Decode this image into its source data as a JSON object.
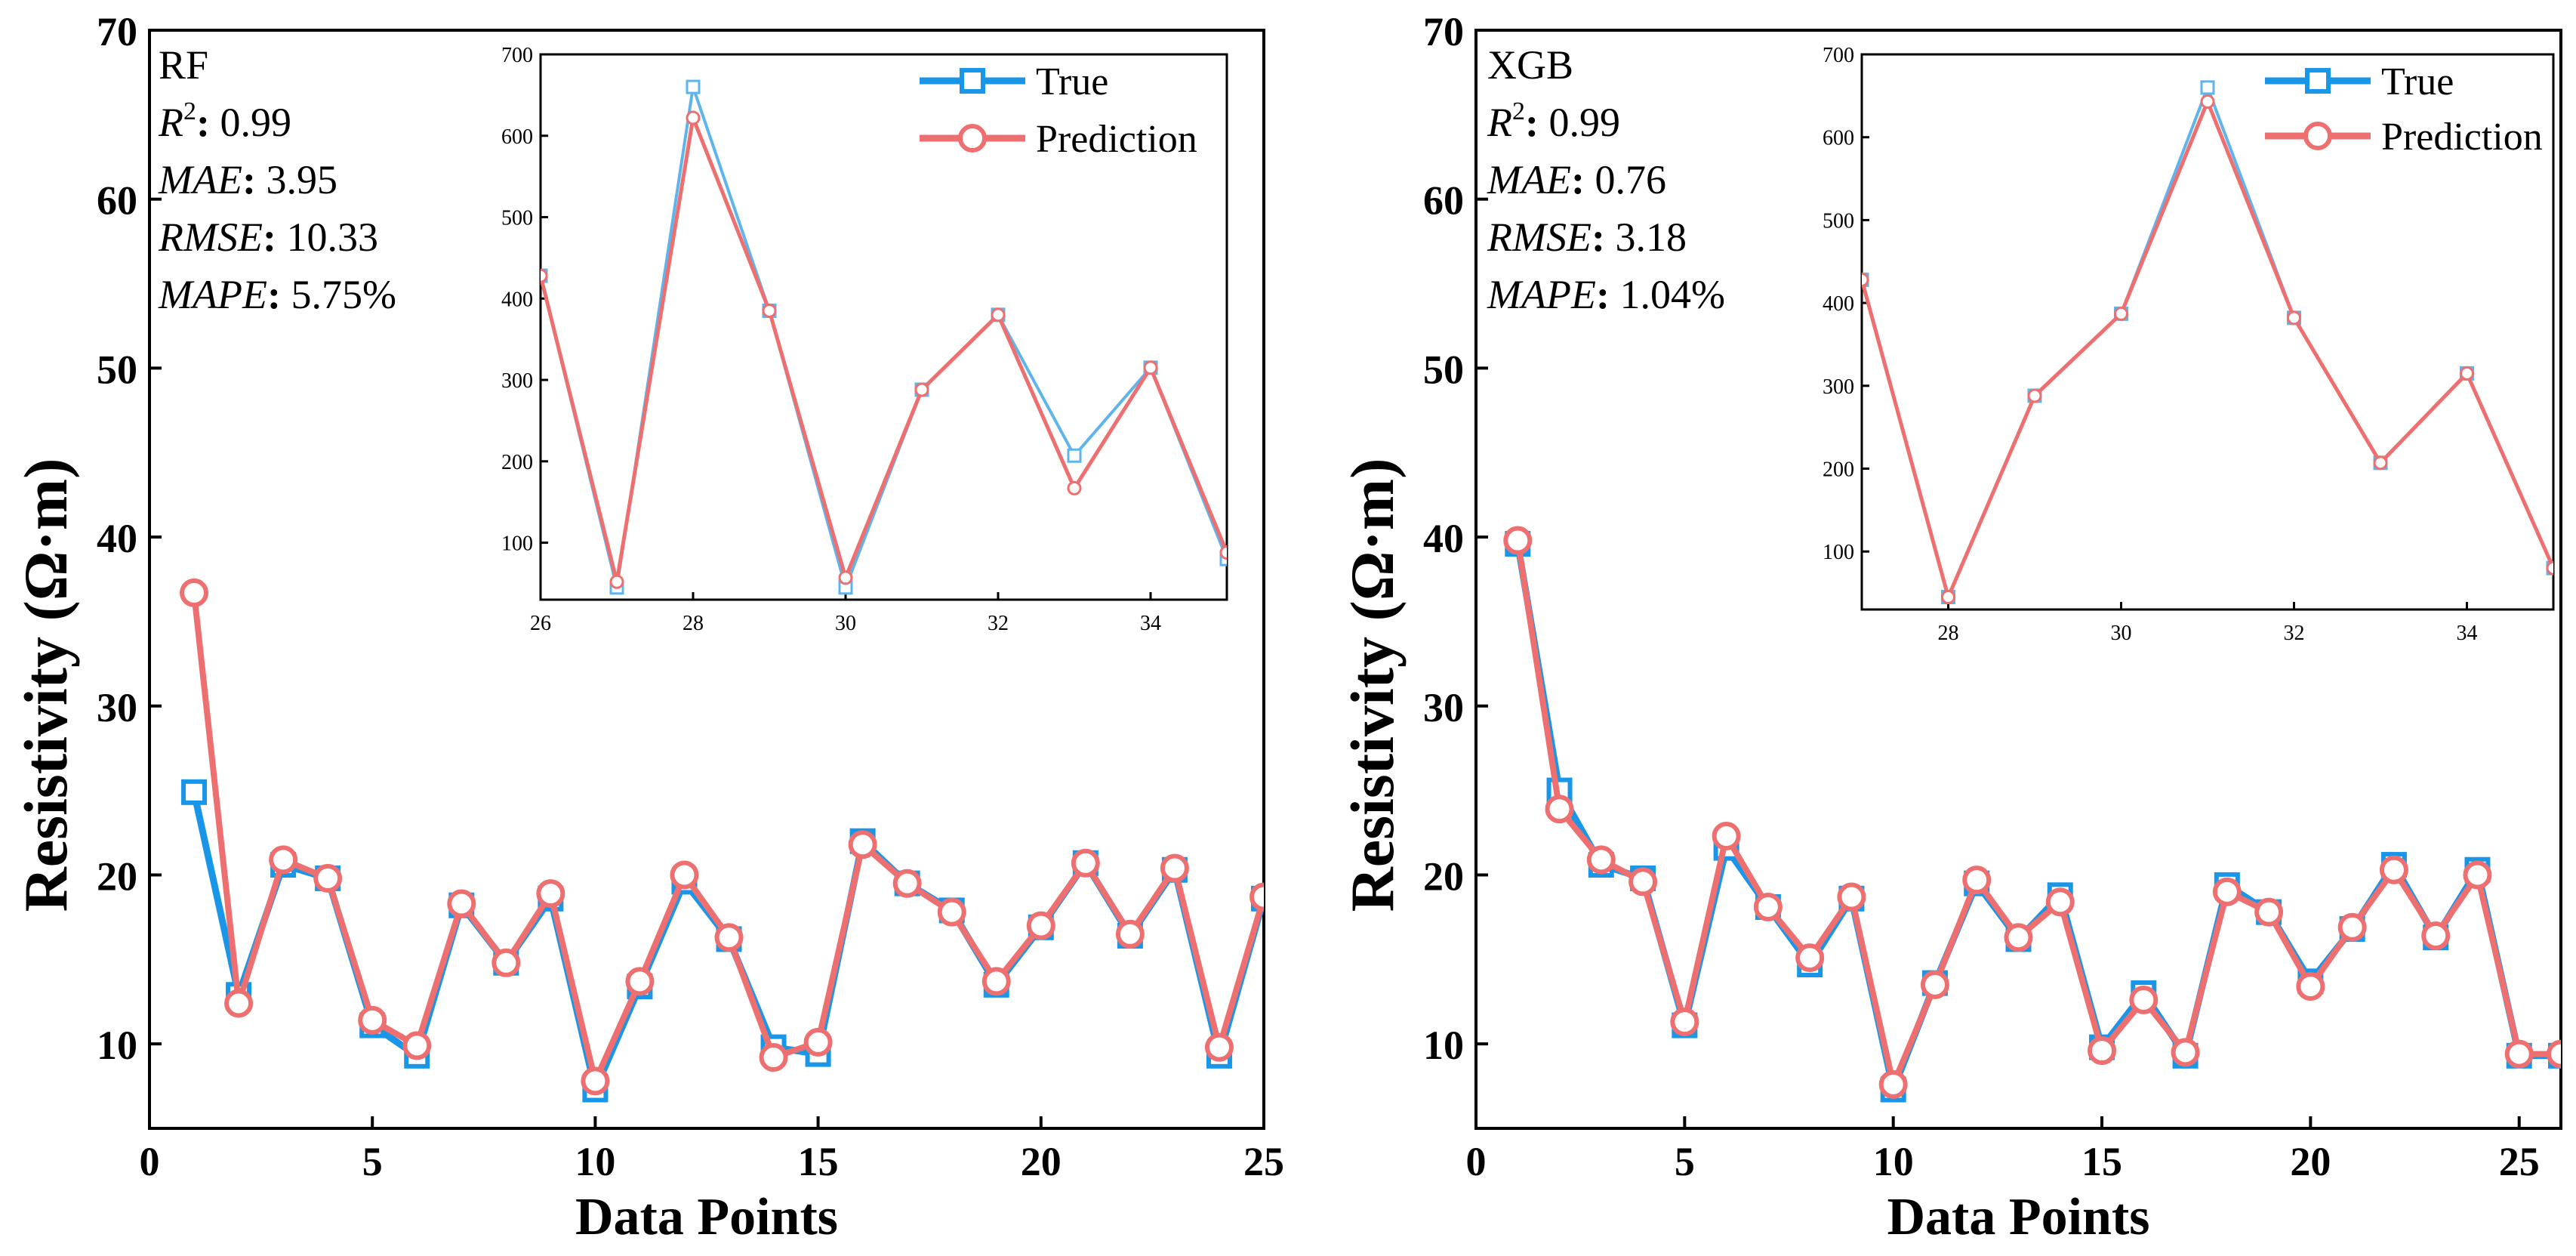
{
  "colors": {
    "true_line": "#1a96e8",
    "true_inset": "#5fb4ec",
    "prediction_line": "#ee6f6f",
    "marker_fill": "#ffffff",
    "axis": "#000000"
  },
  "chart_data": [
    {
      "type": "line",
      "model": "RF",
      "metrics": [
        {
          "name": "R",
          "sup": "2",
          "value": "0.99"
        },
        {
          "name": "MAE",
          "value": "3.95"
        },
        {
          "name": "RMSE",
          "value": "10.33"
        },
        {
          "name": "MAPE",
          "value": "5.75%"
        }
      ],
      "xlabel": "Data Points",
      "ylabel": "Resistivity (Ω·m)",
      "xlim": [
        0,
        25
      ],
      "ylim": [
        5,
        70
      ],
      "xticks": [
        0,
        5,
        10,
        15,
        20,
        25
      ],
      "yticks": [
        10,
        20,
        30,
        40,
        50,
        60,
        70
      ],
      "legend": [
        "True",
        "Prediction"
      ],
      "series": [
        {
          "name": "True",
          "x": [
            1,
            2,
            3,
            4,
            5,
            6,
            7,
            8,
            9,
            10,
            11,
            12,
            13,
            14,
            15,
            16,
            17,
            18,
            19,
            20,
            21,
            22,
            23,
            24,
            25
          ],
          "values": [
            24.9,
            12.9,
            20.6,
            19.8,
            11.1,
            9.3,
            18.2,
            14.8,
            18.6,
            7.3,
            13.4,
            19.6,
            16.2,
            9.8,
            9.4,
            22.0,
            19.5,
            17.9,
            13.5,
            16.9,
            20.7,
            16.4,
            20.3,
            9.3,
            18.6
          ]
        },
        {
          "name": "Prediction",
          "x": [
            1,
            2,
            3,
            4,
            5,
            6,
            7,
            8,
            9,
            10,
            11,
            12,
            13,
            14,
            15,
            16,
            17,
            18,
            19,
            20,
            21,
            22,
            23,
            24,
            25
          ],
          "values": [
            36.7,
            12.4,
            20.9,
            19.8,
            11.4,
            9.9,
            18.3,
            14.8,
            18.9,
            7.8,
            13.7,
            20.0,
            16.3,
            9.2,
            10.1,
            21.8,
            19.5,
            17.8,
            13.7,
            17.0,
            20.7,
            16.5,
            20.4,
            9.8,
            18.7
          ]
        }
      ],
      "inset": {
        "xlim": [
          26,
          35
        ],
        "ylim": [
          30,
          700
        ],
        "xticks": [
          26,
          28,
          30,
          32,
          34
        ],
        "yticks": [
          100,
          200,
          300,
          400,
          500,
          600,
          700
        ],
        "series": [
          {
            "name": "True",
            "x": [
              26,
              27,
              28,
              29,
              30,
              31,
              32,
              33,
              34,
              35
            ],
            "values": [
              428,
              45,
              660,
              385,
              45,
              288,
              380,
              207,
              315,
              80
            ]
          },
          {
            "name": "Prediction",
            "x": [
              26,
              27,
              28,
              29,
              30,
              31,
              32,
              33,
              34,
              35
            ],
            "values": [
              428,
              52,
              622,
              385,
              57,
              288,
              380,
              167,
              315,
              88
            ]
          }
        ]
      }
    },
    {
      "type": "line",
      "model": "XGB",
      "metrics": [
        {
          "name": "R",
          "sup": "2",
          "value": "0.99"
        },
        {
          "name": "MAE",
          "value": "0.76"
        },
        {
          "name": "RMSE",
          "value": "3.18"
        },
        {
          "name": "MAPE",
          "value": "1.04%"
        }
      ],
      "xlabel": "Data Points",
      "ylabel": "Resistivity (Ω·m)",
      "xlim": [
        0,
        26
      ],
      "ylim": [
        5,
        70
      ],
      "xticks": [
        0,
        5,
        10,
        15,
        20,
        25
      ],
      "yticks": [
        10,
        20,
        30,
        40,
        50,
        60,
        70
      ],
      "legend": [
        "True",
        "Prediction"
      ],
      "series": [
        {
          "name": "True",
          "x": [
            1,
            2,
            3,
            4,
            5,
            6,
            7,
            8,
            9,
            10,
            11,
            12,
            13,
            14,
            15,
            16,
            17,
            18,
            19,
            20,
            21,
            22,
            23,
            24,
            25,
            26
          ],
          "values": [
            39.6,
            25.0,
            20.6,
            19.8,
            11.1,
            21.6,
            18.1,
            14.7,
            18.6,
            7.3,
            13.6,
            19.5,
            16.2,
            18.8,
            9.8,
            13.0,
            9.3,
            19.4,
            17.8,
            13.7,
            16.8,
            20.6,
            16.3,
            20.3,
            9.3,
            9.3
          ]
        },
        {
          "name": "Prediction",
          "x": [
            1,
            2,
            3,
            4,
            5,
            6,
            7,
            8,
            9,
            10,
            11,
            12,
            13,
            14,
            15,
            16,
            17,
            18,
            19,
            20,
            21,
            22,
            23,
            24,
            25,
            26
          ],
          "values": [
            39.8,
            23.9,
            20.9,
            19.6,
            11.3,
            22.3,
            18.1,
            15.1,
            18.7,
            7.6,
            13.5,
            19.7,
            16.3,
            18.4,
            9.6,
            12.6,
            9.5,
            19.0,
            17.8,
            13.4,
            16.9,
            20.3,
            16.4,
            20.0,
            9.4,
            9.4
          ]
        }
      ],
      "inset": {
        "xlim": [
          27,
          35
        ],
        "ylim": [
          30,
          700
        ],
        "xticks": [
          28,
          30,
          32,
          34
        ],
        "yticks": [
          100,
          200,
          300,
          400,
          500,
          600,
          700
        ],
        "series": [
          {
            "name": "True",
            "x": [
              27,
              28,
              29,
              30,
              31,
              32,
              33,
              34,
              35
            ],
            "values": [
              428,
              45,
              288,
              387,
              660,
              382,
              207,
              315,
              80
            ]
          },
          {
            "name": "Prediction",
            "x": [
              27,
              28,
              29,
              30,
              31,
              32,
              33,
              34,
              35
            ],
            "values": [
              428,
              45,
              288,
              387,
              643,
              382,
              207,
              315,
              80
            ]
          }
        ]
      }
    }
  ]
}
